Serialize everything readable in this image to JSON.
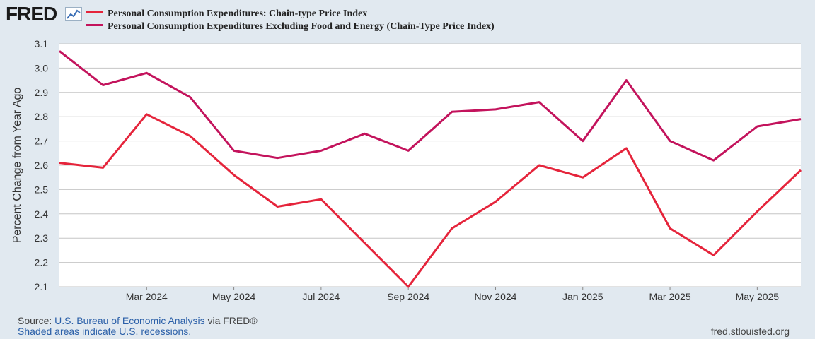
{
  "brand": {
    "logo_text": "FRED",
    "logo_icon": "line-chart-icon"
  },
  "colors": {
    "background": "#e1e9f0",
    "plot_bg": "#ffffff",
    "grid": "#c6c6c6",
    "series1": "#e5243b",
    "series2": "#c3135c"
  },
  "footer": {
    "source_prefix": "Source: ",
    "source_name": "U.S. Bureau of Economic Analysis",
    "source_via": " via FRED®",
    "shaded_note": "Shaded areas indicate U.S. recessions.",
    "url": "fred.stlouisfed.org"
  },
  "chart_data": {
    "type": "line",
    "ylabel": "Percent Change from Year Ago",
    "ylim": [
      2.1,
      3.1
    ],
    "yticks": [
      "2.1",
      "2.2",
      "2.3",
      "2.4",
      "2.5",
      "2.6",
      "2.7",
      "2.8",
      "2.9",
      "3.0",
      "3.1"
    ],
    "xlim": [
      "2024-01",
      "2025-06"
    ],
    "xtick_labels": [
      {
        "x": "2024-03",
        "label": "Mar 2024"
      },
      {
        "x": "2024-05",
        "label": "May 2024"
      },
      {
        "x": "2024-07",
        "label": "Jul 2024"
      },
      {
        "x": "2024-09",
        "label": "Sep 2024"
      },
      {
        "x": "2024-11",
        "label": "Nov 2024"
      },
      {
        "x": "2025-01",
        "label": "Jan 2025"
      },
      {
        "x": "2025-03",
        "label": "Mar 2025"
      },
      {
        "x": "2025-05",
        "label": "May 2025"
      }
    ],
    "x": [
      "2024-01",
      "2024-02",
      "2024-03",
      "2024-04",
      "2024-05",
      "2024-06",
      "2024-07",
      "2024-08",
      "2024-09",
      "2024-10",
      "2024-11",
      "2024-12",
      "2025-01",
      "2025-02",
      "2025-03",
      "2025-04",
      "2025-05",
      "2025-06"
    ],
    "grid": true,
    "legend_position": "top-left",
    "series": [
      {
        "name": "Personal Consumption Expenditures: Chain-type Price Index",
        "color": "#e5243b",
        "values": [
          2.61,
          2.59,
          2.81,
          2.72,
          2.56,
          2.43,
          2.46,
          2.28,
          2.1,
          2.34,
          2.45,
          2.6,
          2.55,
          2.67,
          2.34,
          2.23,
          2.41,
          2.58
        ]
      },
      {
        "name": "Personal Consumption Expenditures Excluding Food and Energy (Chain-Type Price Index)",
        "color": "#c3135c",
        "values": [
          3.07,
          2.93,
          2.98,
          2.88,
          2.66,
          2.63,
          2.66,
          2.73,
          2.66,
          2.82,
          2.83,
          2.86,
          2.7,
          2.95,
          2.7,
          2.62,
          2.76,
          2.79
        ]
      }
    ]
  }
}
